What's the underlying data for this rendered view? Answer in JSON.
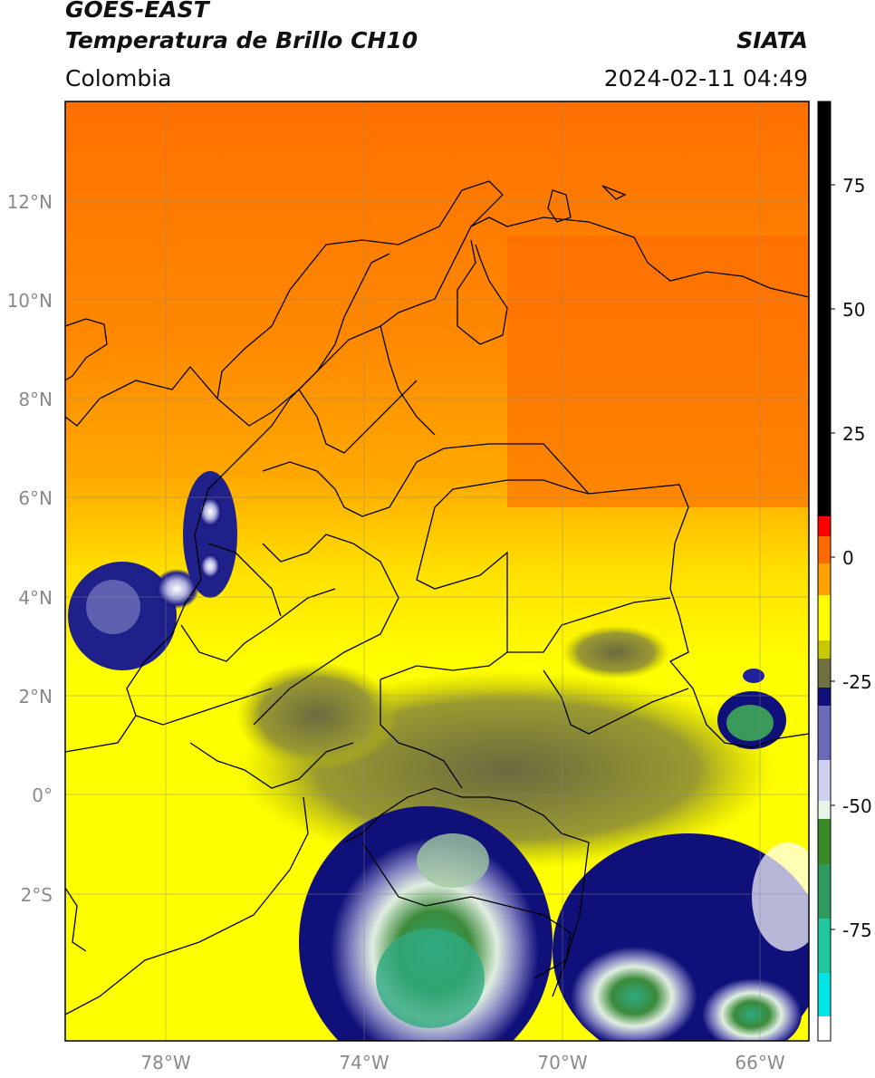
{
  "header": {
    "satellite": "GOES-EAST",
    "product": "Temperatura de Brillo CH10",
    "region": "Colombia",
    "organization": "SIATA",
    "datetime": "2024-02-11 04:49"
  },
  "map": {
    "lon_range": [
      -80,
      -65
    ],
    "lat_range": [
      -5,
      14
    ],
    "lon_ticks": [
      "78°W",
      "74°W",
      "70°W",
      "66°W"
    ],
    "lat_ticks": [
      "12°N",
      "10°N",
      "8°N",
      "6°N",
      "4°N",
      "2°N",
      "0°",
      "2°S"
    ],
    "gridlines": true
  },
  "colorbar": {
    "ticks": [
      "75",
      "50",
      "25",
      "0",
      "-25",
      "-50",
      "-75"
    ],
    "range": [
      -100,
      90
    ],
    "colors": [
      "#ffffff",
      "#00e5e5",
      "#2fa880",
      "#3a8a2a",
      "#e8f4e8",
      "#8080c0",
      "#10107a",
      "#7a7a40",
      "#c8c800",
      "#ffff00",
      "#ffb000",
      "#ff7000",
      "#ff0000",
      "#000000"
    ]
  }
}
